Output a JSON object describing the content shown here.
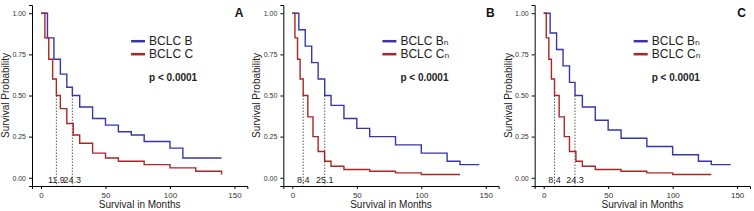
{
  "chart_data": [
    {
      "type": "line",
      "title": "A",
      "x_label": "Survival in Months",
      "y_label": "Survival Probability",
      "annotation": "p < 0.0001",
      "legend": "right",
      "line_style": "step",
      "xlim": [
        -7,
        160
      ],
      "ylim": [
        -0.05,
        1.05
      ],
      "xticks": [
        0,
        50,
        100,
        150
      ],
      "yticks": [
        {
          "value": 0,
          "label": "0.00"
        },
        {
          "value": 0.25,
          "label": "0.25"
        },
        {
          "value": 0.5,
          "label": "0.50"
        },
        {
          "value": 0.75,
          "label": "0.75"
        },
        {
          "value": 1,
          "label": "1.00"
        }
      ],
      "series": [
        {
          "name": "BCLC B",
          "color": "#3636a8",
          "median": 24.3,
          "x": [
            0,
            5,
            10,
            15,
            20,
            24.3,
            30,
            40,
            50,
            60,
            70,
            80,
            100,
            110,
            140
          ],
          "values": [
            1,
            0.85,
            0.72,
            0.63,
            0.55,
            0.5,
            0.43,
            0.36,
            0.32,
            0.28,
            0.26,
            0.22,
            0.18,
            0.12,
            0.12
          ]
        },
        {
          "name": "BCLC C",
          "color": "#ad2424",
          "median": 11.9,
          "x": [
            0,
            3,
            6,
            9,
            11.9,
            15,
            20,
            25,
            30,
            40,
            50,
            60,
            80,
            100,
            120,
            140
          ],
          "values": [
            1,
            0.85,
            0.72,
            0.6,
            0.5,
            0.42,
            0.33,
            0.26,
            0.21,
            0.15,
            0.12,
            0.1,
            0.08,
            0.06,
            0.04,
            0.02
          ]
        }
      ]
    },
    {
      "type": "line",
      "title": "B",
      "x_label": "Survival in Months",
      "y_label": "Survival Probability",
      "annotation": "p < 0.0001",
      "legend": "right",
      "line_style": "step",
      "xlim": [
        -7,
        160
      ],
      "ylim": [
        -0.05,
        1.05
      ],
      "xticks": [
        0,
        50,
        100,
        150
      ],
      "yticks": [
        {
          "value": 0,
          "label": "0.00"
        },
        {
          "value": 0.25,
          "label": "0.25"
        },
        {
          "value": 0.5,
          "label": "0.50"
        },
        {
          "value": 0.75,
          "label": "0.75"
        },
        {
          "value": 1,
          "label": "1.00"
        }
      ],
      "series": [
        {
          "name": "BCLC Bₙ",
          "color": "#3636a8",
          "median": 25.1,
          "x": [
            0,
            5,
            10,
            15,
            20,
            25.1,
            30,
            40,
            50,
            60,
            80,
            100,
            120,
            130,
            145
          ],
          "values": [
            1,
            0.9,
            0.8,
            0.7,
            0.6,
            0.5,
            0.44,
            0.36,
            0.3,
            0.25,
            0.2,
            0.15,
            0.1,
            0.08,
            0.08
          ]
        },
        {
          "name": "BCLC Cₙ",
          "color": "#ad2424",
          "median": 8.4,
          "x": [
            0,
            2,
            4,
            6,
            8.4,
            12,
            16,
            20,
            25,
            30,
            40,
            60,
            80,
            100,
            130
          ],
          "values": [
            1,
            0.85,
            0.72,
            0.6,
            0.5,
            0.37,
            0.25,
            0.16,
            0.1,
            0.07,
            0.05,
            0.04,
            0.03,
            0.02,
            0.02
          ]
        }
      ]
    },
    {
      "type": "line",
      "title": "C",
      "x_label": "Survival in Months",
      "y_label": "Survival Probability",
      "annotation": "p < 0.0001",
      "legend": "right",
      "line_style": "step",
      "xlim": [
        -7,
        160
      ],
      "ylim": [
        -0.05,
        1.05
      ],
      "xticks": [
        0,
        50,
        100,
        150
      ],
      "yticks": [
        {
          "value": 0,
          "label": "0.00"
        },
        {
          "value": 0.25,
          "label": "0.25"
        },
        {
          "value": 0.5,
          "label": "0.50"
        },
        {
          "value": 0.75,
          "label": "0.75"
        },
        {
          "value": 1,
          "label": "1.00"
        }
      ],
      "series": [
        {
          "name": "BCLC Bₙ",
          "color": "#3636a8",
          "median": 24.3,
          "x": [
            0,
            5,
            10,
            15,
            20,
            24.3,
            30,
            40,
            50,
            60,
            80,
            100,
            120,
            130,
            145
          ],
          "values": [
            1,
            0.88,
            0.78,
            0.68,
            0.58,
            0.5,
            0.43,
            0.35,
            0.29,
            0.24,
            0.19,
            0.14,
            0.1,
            0.08,
            0.08
          ]
        },
        {
          "name": "BCLC Cₙ",
          "color": "#ad2424",
          "median": 8.4,
          "x": [
            0,
            2,
            4,
            6,
            8.4,
            12,
            16,
            20,
            25,
            30,
            40,
            60,
            80,
            100,
            130
          ],
          "values": [
            1,
            0.85,
            0.72,
            0.6,
            0.5,
            0.37,
            0.25,
            0.16,
            0.1,
            0.07,
            0.05,
            0.04,
            0.03,
            0.02,
            0.02
          ]
        }
      ]
    }
  ]
}
